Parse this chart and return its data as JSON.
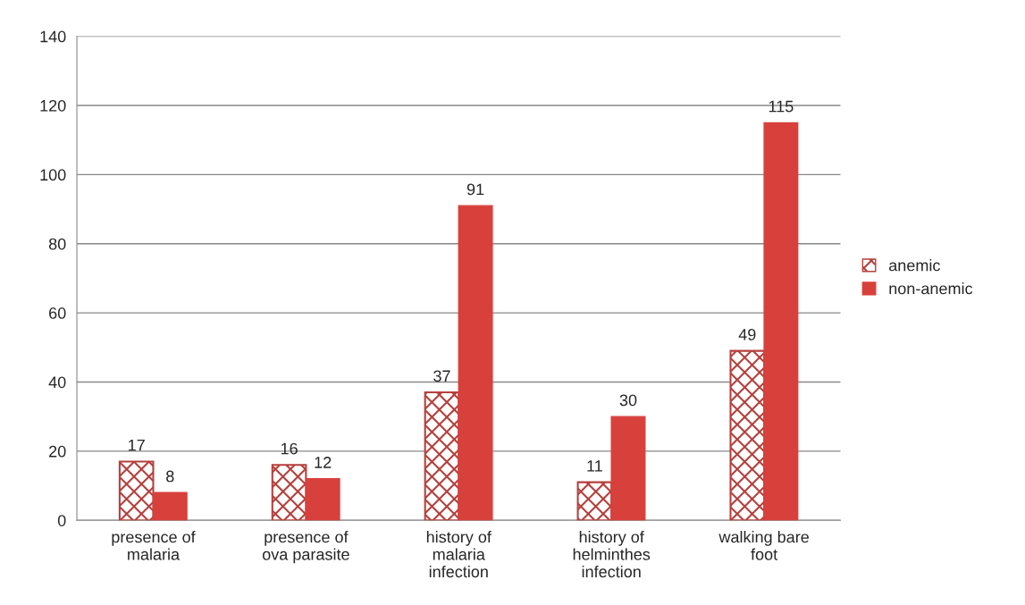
{
  "chart_data": {
    "type": "bar",
    "categories": [
      "presence of\nmalaria",
      "presence of\nova parasite",
      "history of\nmalaria\ninfection",
      "history of\nhelminthes\ninfection",
      "walking bare\nfoot"
    ],
    "series": [
      {
        "name": "anemic",
        "color": "#b5403d",
        "values": [
          17,
          16,
          37,
          11,
          49
        ]
      },
      {
        "name": "non-anemic",
        "color": "#d8403c",
        "values": [
          8,
          12,
          91,
          30,
          115
        ]
      }
    ],
    "ylim": [
      0,
      140
    ],
    "yticks": [
      0,
      20,
      40,
      60,
      80,
      100,
      120,
      140
    ],
    "grid": "y",
    "legend": "right",
    "data_labels": true
  }
}
